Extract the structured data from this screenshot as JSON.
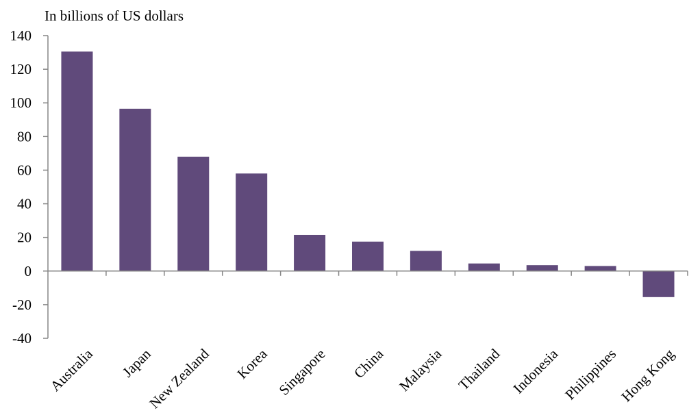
{
  "chart_data": {
    "type": "bar",
    "unit_label": "In billions  of US dollars",
    "categories": [
      "Australia",
      "Japan",
      "New Zealand",
      "Korea",
      "Singapore",
      "China",
      "Malaysia",
      "Thailand",
      "Indonesia",
      "Philippines",
      "Hong Kong"
    ],
    "values": [
      130.5,
      96.5,
      68,
      58,
      21.5,
      17.5,
      12,
      4.5,
      3.5,
      3,
      -15.5
    ],
    "yticks": [
      "140",
      "120",
      "100",
      "80",
      "60",
      "40",
      "20",
      "0",
      "-20",
      "-40"
    ],
    "ylim": [
      -40,
      140
    ],
    "bar_color": "#604a7b",
    "grid": false,
    "legend": "none"
  }
}
